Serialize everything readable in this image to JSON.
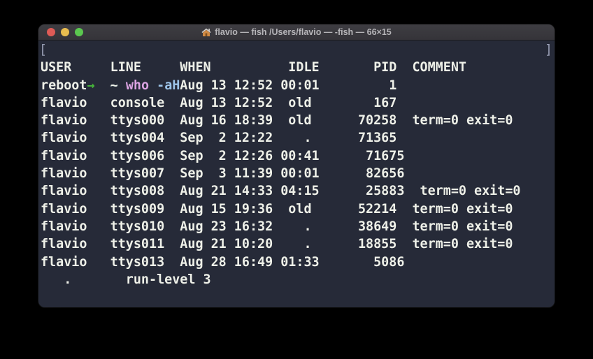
{
  "colors": {
    "terminal_bg": "#262a38",
    "titlebar_bg": "#39383d",
    "titlebar_text": "#b6b5b8",
    "fg": "#eef0e8",
    "green": "#45b13a",
    "cyan": "#80d9e2",
    "pink": "#dba3e2",
    "blue": "#9cc3e8",
    "mark": "#989eb4",
    "cursor": "#6ce24f"
  },
  "window": {
    "title": "flavio — fish /Users/flavio — -fish — 66×15",
    "traffic_lights": [
      {
        "name": "close-button",
        "color": "#df5b56"
      },
      {
        "name": "minimize-button",
        "color": "#e9bd4f"
      },
      {
        "name": "zoom-button",
        "color": "#5bc74f"
      }
    ]
  },
  "terminal": {
    "command_line": {
      "mark_open": "[",
      "mark_close": "]",
      "segments": [
        {
          "text": "→",
          "color": "green",
          "name": "prompt-arrow"
        },
        {
          "text": "  ",
          "color": "fg",
          "name": "spacer"
        },
        {
          "text": "~",
          "color": "cyan",
          "name": "prompt-cwd"
        },
        {
          "text": " ",
          "color": "fg",
          "name": "spacer"
        },
        {
          "text": "who",
          "color": "pink",
          "name": "command-name"
        },
        {
          "text": " ",
          "color": "fg",
          "name": "command-args-space"
        },
        {
          "text": "-aH",
          "color": "blue",
          "name": "command-args"
        }
      ]
    },
    "header_line": "USER     LINE     WHEN          IDLE       PID  COMMENT",
    "output_rows": [
      "reboot   ~        Aug 13 12:52 00:01         1",
      "flavio   console  Aug 13 12:52  old        167",
      "flavio   ttys000  Aug 16 18:39  old      70258  term=0 exit=0",
      "flavio   ttys004  Sep  2 12:22    .      71365",
      "flavio   ttys006  Sep  2 12:26 00:41      71675",
      "flavio   ttys007  Sep  3 11:39 00:01      82656",
      "flavio   ttys008  Aug 21 14:33 04:15      25883  term=0 exit=0",
      "flavio   ttys009  Aug 15 19:36  old      52214  term=0 exit=0",
      "flavio   ttys010  Aug 23 16:32    .      38649  term=0 exit=0",
      "flavio   ttys011  Aug 21 10:20    .      18855  term=0 exit=0",
      "flavio   ttys013  Aug 28 16:49 01:33       5086"
    ],
    "runlevel_row": "   .       run-level 3",
    "prompt_line": {
      "segments": [
        {
          "text": "→",
          "color": "green",
          "name": "prompt-arrow"
        },
        {
          "text": "  ",
          "color": "fg",
          "name": "spacer"
        },
        {
          "text": "~",
          "color": "cyan",
          "name": "prompt-cwd"
        },
        {
          "text": "  ",
          "color": "fg",
          "name": "spacer"
        }
      ],
      "cursor_text": " "
    }
  }
}
